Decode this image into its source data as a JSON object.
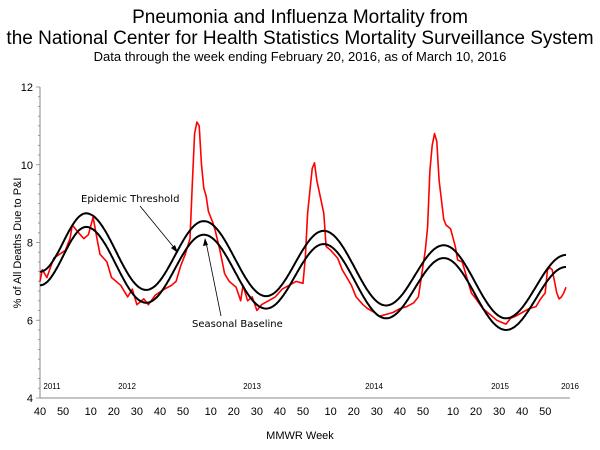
{
  "chart_data": {
    "type": "line",
    "title": "Pneumonia and Influenza Mortality from",
    "title_line2": "the National Center for Health Statistics Mortality Surveillance System",
    "subtitle": "Data through the week ending February 20, 2016, as of March 10, 2016",
    "xlabel": "MMWR Week",
    "ylabel": "% of All Deaths Due to P&I",
    "ylim": [
      4,
      12
    ],
    "yticks": [
      "4",
      "6",
      "8",
      "10",
      "12"
    ],
    "x_start": "2011-40",
    "x_end": "2016-07",
    "year_labels": [
      "2011",
      "2012",
      "2013",
      "2014",
      "2015",
      "2016"
    ],
    "xtick_labels": [
      "40",
      "50",
      "10",
      "20",
      "30",
      "40",
      "50",
      "10",
      "20",
      "30",
      "40",
      "50",
      "10",
      "20",
      "30",
      "40",
      "50",
      "10",
      "20",
      "30",
      "40",
      "50"
    ],
    "grid": false,
    "colors": {
      "observed": "#ff0000",
      "threshold": "#000000",
      "baseline": "#000000"
    },
    "annotations": {
      "threshold": "Epidemic Threshold",
      "baseline": "Seasonal Baseline"
    },
    "series": [
      {
        "key": "observed",
        "points": [
          [
            "2011-40",
            7.0
          ],
          [
            "2011-41",
            7.3
          ],
          [
            "2011-43",
            7.1
          ],
          [
            "2011-46",
            7.6
          ],
          [
            "2011-51",
            7.8
          ],
          [
            "2012-01",
            8.1
          ],
          [
            "2012-02",
            8.45
          ],
          [
            "2012-04",
            8.3
          ],
          [
            "2012-07",
            8.1
          ],
          [
            "2012-09",
            8.2
          ],
          [
            "2012-11",
            8.65
          ],
          [
            "2012-13",
            8.0
          ],
          [
            "2012-14",
            7.7
          ],
          [
            "2012-17",
            7.5
          ],
          [
            "2012-19",
            7.1
          ],
          [
            "2012-23",
            6.9
          ],
          [
            "2012-26",
            6.6
          ],
          [
            "2012-28",
            6.8
          ],
          [
            "2012-30",
            6.4
          ],
          [
            "2012-33",
            6.55
          ],
          [
            "2012-35",
            6.4
          ],
          [
            "2012-38",
            6.65
          ],
          [
            "2012-42",
            6.8
          ],
          [
            "2012-45",
            6.9
          ],
          [
            "2012-47",
            7.0
          ],
          [
            "2012-49",
            7.4
          ],
          [
            "2012-51",
            7.7
          ],
          [
            "2013-01",
            8.1
          ],
          [
            "2013-02",
            9.5
          ],
          [
            "2013-03",
            10.8
          ],
          [
            "2013-04",
            11.1
          ],
          [
            "2013-05",
            11.0
          ],
          [
            "2013-06",
            10.0
          ],
          [
            "2013-07",
            9.4
          ],
          [
            "2013-08",
            9.2
          ],
          [
            "2013-09",
            8.8
          ],
          [
            "2013-11",
            8.5
          ],
          [
            "2013-12",
            8.3
          ],
          [
            "2013-14",
            7.8
          ],
          [
            "2013-16",
            7.2
          ],
          [
            "2013-18",
            7.0
          ],
          [
            "2013-21",
            6.85
          ],
          [
            "2013-23",
            6.5
          ],
          [
            "2013-24",
            6.9
          ],
          [
            "2013-26",
            6.5
          ],
          [
            "2013-28",
            6.6
          ],
          [
            "2013-30",
            6.25
          ],
          [
            "2013-32",
            6.4
          ],
          [
            "2013-35",
            6.5
          ],
          [
            "2013-38",
            6.6
          ],
          [
            "2013-41",
            6.8
          ],
          [
            "2013-44",
            6.9
          ],
          [
            "2013-47",
            7.0
          ],
          [
            "2013-50",
            6.95
          ],
          [
            "2013-51",
            7.6
          ],
          [
            "2013-52",
            8.75
          ],
          [
            "2014-02",
            9.9
          ],
          [
            "2014-03",
            10.05
          ],
          [
            "2014-04",
            9.6
          ],
          [
            "2014-07",
            8.75
          ],
          [
            "2014-08",
            7.9
          ],
          [
            "2014-10",
            7.8
          ],
          [
            "2014-13",
            7.6
          ],
          [
            "2014-15",
            7.3
          ],
          [
            "2014-17",
            7.1
          ],
          [
            "2014-19",
            6.9
          ],
          [
            "2014-21",
            6.6
          ],
          [
            "2014-24",
            6.4
          ],
          [
            "2014-26",
            6.3
          ],
          [
            "2014-29",
            6.2
          ],
          [
            "2014-31",
            6.1
          ],
          [
            "2014-34",
            6.15
          ],
          [
            "2014-37",
            6.2
          ],
          [
            "2014-40",
            6.3
          ],
          [
            "2014-43",
            6.35
          ],
          [
            "2014-46",
            6.45
          ],
          [
            "2014-48",
            6.6
          ],
          [
            "2014-49",
            7.0
          ],
          [
            "2014-51",
            7.8
          ],
          [
            "2014-52",
            8.4
          ],
          [
            "2014-53",
            9.85
          ],
          [
            "2015-01",
            10.5
          ],
          [
            "2015-02",
            10.8
          ],
          [
            "2015-03",
            10.6
          ],
          [
            "2015-04",
            9.6
          ],
          [
            "2015-05",
            9.1
          ],
          [
            "2015-06",
            8.6
          ],
          [
            "2015-07",
            8.45
          ],
          [
            "2015-09",
            8.35
          ],
          [
            "2015-11",
            7.9
          ],
          [
            "2015-12",
            7.55
          ],
          [
            "2015-14",
            7.5
          ],
          [
            "2015-16",
            7.1
          ],
          [
            "2015-18",
            6.7
          ],
          [
            "2015-20",
            6.55
          ],
          [
            "2015-23",
            6.3
          ],
          [
            "2015-26",
            6.15
          ],
          [
            "2015-29",
            6.0
          ],
          [
            "2015-31",
            5.95
          ],
          [
            "2015-33",
            5.9
          ],
          [
            "2015-35",
            6.05
          ],
          [
            "2015-37",
            6.1
          ],
          [
            "2015-40",
            6.2
          ],
          [
            "2015-43",
            6.3
          ],
          [
            "2015-46",
            6.35
          ],
          [
            "2015-48",
            6.55
          ],
          [
            "2015-50",
            6.7
          ],
          [
            "2015-51",
            7.3
          ],
          [
            "2015-52",
            7.35
          ],
          [
            "2016-01",
            7.3
          ],
          [
            "2016-02",
            7.0
          ],
          [
            "2016-03",
            6.7
          ],
          [
            "2016-04",
            6.55
          ],
          [
            "2016-05",
            6.6
          ],
          [
            "2016-06",
            6.7
          ],
          [
            "2016-07",
            6.85
          ]
        ]
      },
      {
        "key": "threshold",
        "name": "Epidemic Threshold",
        "points": [
          [
            "2011-40",
            7.25
          ],
          [
            "2012-08",
            8.75
          ],
          [
            "2012-34",
            6.78
          ],
          [
            "2013-07",
            8.55
          ],
          [
            "2013-34",
            6.62
          ],
          [
            "2014-07",
            8.3
          ],
          [
            "2014-34",
            6.38
          ],
          [
            "2015-06",
            7.93
          ],
          [
            "2015-33",
            6.05
          ],
          [
            "2016-07",
            7.68
          ]
        ]
      },
      {
        "key": "baseline",
        "name": "Seasonal Baseline",
        "points": [
          [
            "2011-40",
            6.9
          ],
          [
            "2012-08",
            8.4
          ],
          [
            "2012-34",
            6.45
          ],
          [
            "2013-07",
            8.2
          ],
          [
            "2013-34",
            6.3
          ],
          [
            "2014-07",
            7.96
          ],
          [
            "2014-34",
            6.05
          ],
          [
            "2015-06",
            7.6
          ],
          [
            "2015-33",
            5.75
          ],
          [
            "2016-07",
            7.37
          ]
        ]
      }
    ]
  }
}
